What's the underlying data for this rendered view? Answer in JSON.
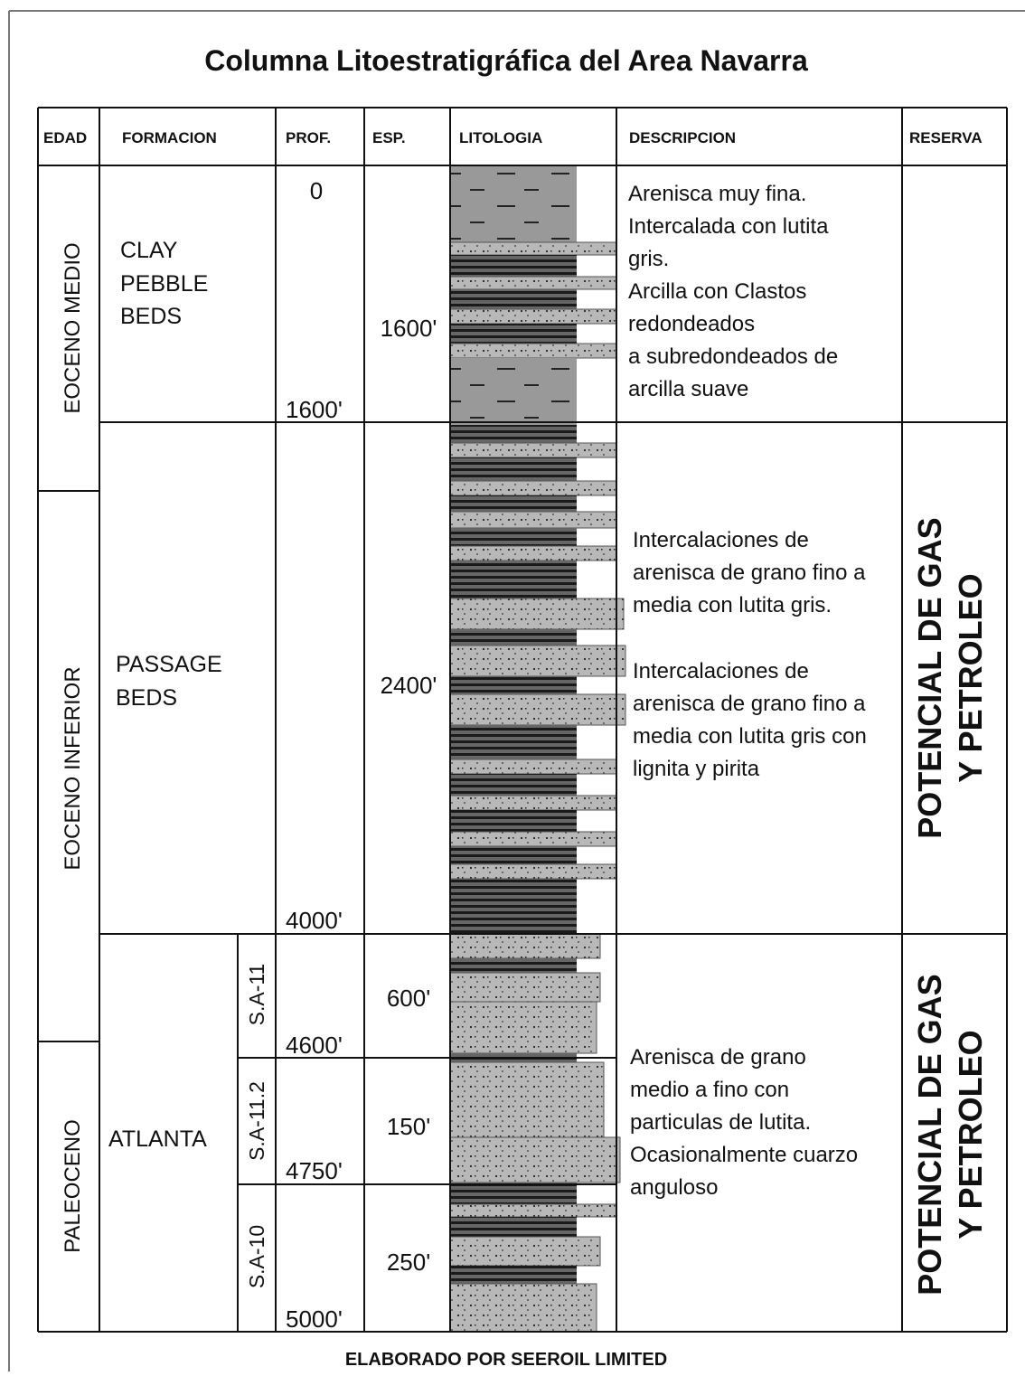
{
  "title": "Columna Litoestratigráfica del Area Navarra",
  "headers": [
    "EDAD",
    "FORMACION",
    "PROF.",
    "ESP.",
    "LITOLOGIA",
    "DESCRIPCION",
    "RESERVA"
  ],
  "ages": [
    "EOCENO MEDIO",
    "EOCENO INFERIOR",
    "PALEOCENO"
  ],
  "formations": [
    [
      "CLAY",
      "PEBBLE",
      "BEDS"
    ],
    [
      "PASSAGE",
      "BEDS"
    ],
    [
      "ATLANTA"
    ]
  ],
  "units": [
    "S.A-11",
    "S.A-11.2",
    "S.A-10"
  ],
  "depths": [
    "0",
    "1600'",
    "4000'",
    "4600'",
    "4750'",
    "5000'"
  ],
  "thicknesses": [
    "1600'",
    "2400'",
    "600'",
    "150'",
    "250'"
  ],
  "descriptions": [
    [
      [
        "Arenisca muy fina.",
        "Intercalada con lutita",
        "gris.",
        "Arcilla con Clastos",
        "redondeados",
        "a subredondeados de",
        "arcilla suave"
      ]
    ],
    [
      [
        "Intercalaciones de",
        "arenisca de grano fino a",
        "media con lutita gris."
      ],
      [
        "Intercalaciones de",
        "arenisca de grano fino a",
        "media con lutita gris con",
        "lignita y pirita"
      ]
    ],
    [
      [
        "Arenisca de grano",
        "medio a fino con",
        "particulas de lutita.",
        "Ocasionalmente cuarzo",
        "anguloso"
      ]
    ]
  ],
  "reserves": [
    [
      "POTENCIAL DE GAS",
      "Y PETROLEO"
    ],
    [
      "POTENCIAL DE GAS",
      "Y PETROLEO"
    ]
  ],
  "footer": "ELABORADO POR SEEROIL LIMITED"
}
